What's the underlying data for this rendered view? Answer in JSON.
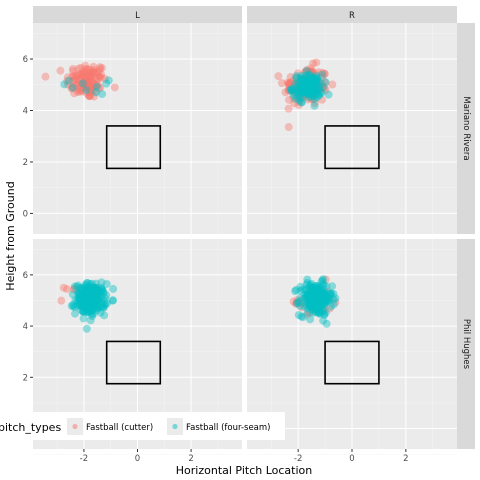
{
  "chart_data": {
    "type": "scatter",
    "xlabel": "Horizontal Pitch Location",
    "ylabel": "Height from Ground",
    "xlim": [
      -3.9,
      3.9
    ],
    "ylim": [
      -0.8,
      7.4
    ],
    "x_ticks": [
      -2,
      0,
      2
    ],
    "y_ticks": [
      0,
      2,
      4,
      6
    ],
    "facet_columns": [
      "L",
      "R"
    ],
    "facet_rows": [
      "Mariano Rivera",
      "Phil Hughes"
    ],
    "strike_zone": {
      "x": [
        -1.15,
        0.85
      ],
      "y": [
        1.75,
        3.4
      ]
    },
    "strike_zone_by_column": [
      {
        "column": "L",
        "x": [
          -1.15,
          0.85
        ],
        "y": [
          1.75,
          3.4
        ]
      },
      {
        "column": "R",
        "x": [
          -1.0,
          1.0
        ],
        "y": [
          1.75,
          3.4
        ]
      }
    ],
    "legend": {
      "title": "pitch_types",
      "position": "bottom",
      "entries": [
        {
          "name": "Fastball (cutter)",
          "color": "#F8766D"
        },
        {
          "name": "Fastball (four-seam)",
          "color": "#00BFC4"
        }
      ]
    },
    "series": [
      {
        "name": "Fastball (cutter)",
        "color": "#F8766D",
        "panels": [
          {
            "row": "Mariano Rivera",
            "column": "L",
            "n": 110,
            "center": [
              -1.9,
              5.15
            ],
            "spread": [
              0.38,
              0.35
            ]
          },
          {
            "row": "Mariano Rivera",
            "column": "R",
            "n": 130,
            "center": [
              -1.7,
              4.95
            ],
            "spread": [
              0.42,
              0.38
            ]
          },
          {
            "row": "Phil Hughes",
            "column": "L",
            "n": 12,
            "center": [
              -2.1,
              5.2
            ],
            "spread": [
              0.3,
              0.25
            ]
          },
          {
            "row": "Phil Hughes",
            "column": "R",
            "n": 30,
            "center": [
              -1.45,
              5.0
            ],
            "spread": [
              0.35,
              0.35
            ]
          }
        ]
      },
      {
        "name": "Fastball (four-seam)",
        "color": "#00BFC4",
        "panels": [
          {
            "row": "Mariano Rivera",
            "column": "L",
            "n": 10,
            "center": [
              -1.6,
              5.0
            ],
            "spread": [
              0.45,
              0.35
            ]
          },
          {
            "row": "Mariano Rivera",
            "column": "R",
            "n": 140,
            "center": [
              -1.65,
              4.9
            ],
            "spread": [
              0.28,
              0.25
            ]
          },
          {
            "row": "Phil Hughes",
            "column": "L",
            "n": 220,
            "center": [
              -1.75,
              5.05
            ],
            "spread": [
              0.28,
              0.3
            ]
          },
          {
            "row": "Phil Hughes",
            "column": "R",
            "n": 220,
            "center": [
              -1.35,
              5.05
            ],
            "spread": [
              0.3,
              0.32
            ]
          }
        ]
      }
    ],
    "grid": true
  }
}
